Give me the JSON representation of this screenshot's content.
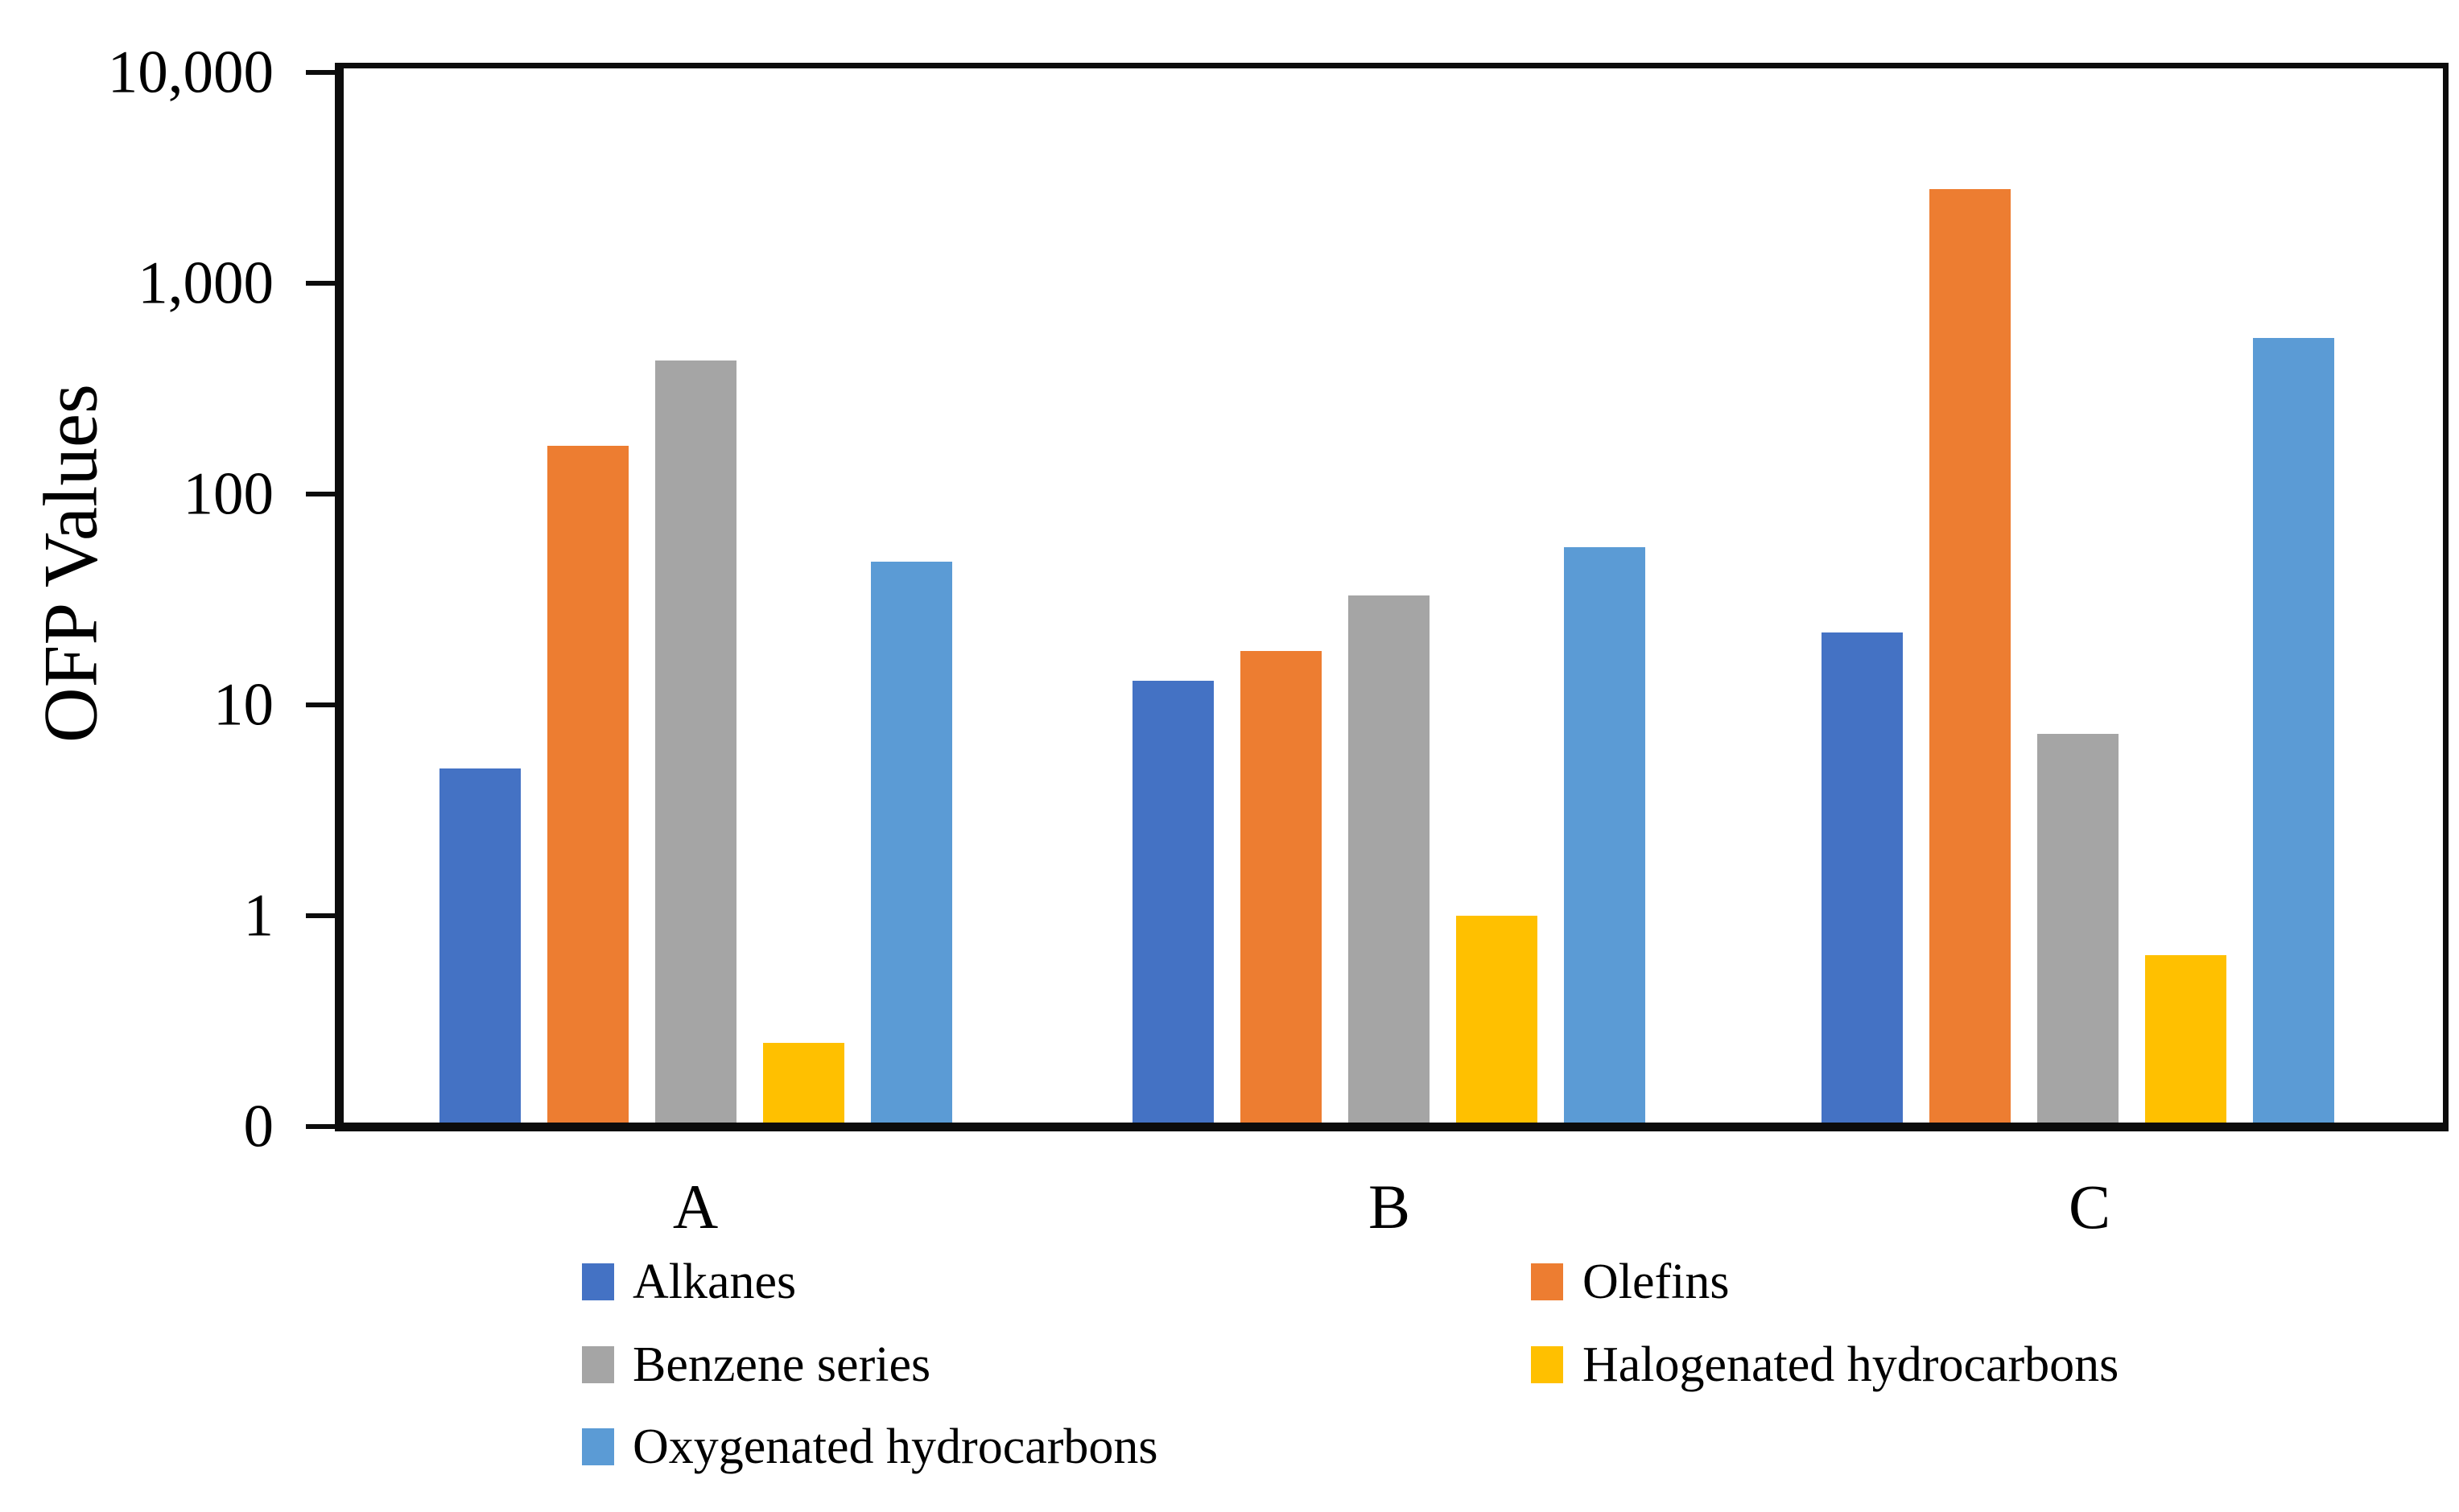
{
  "chart_data": {
    "type": "bar",
    "title": "",
    "xlabel": "",
    "ylabel": "OFP Values",
    "categories": [
      "A",
      "B",
      "C"
    ],
    "series": [
      {
        "name": "Alkanes",
        "color": "#4472C4",
        "values": [
          5,
          13,
          22
        ]
      },
      {
        "name": "Olefins",
        "color": "#ED7D31",
        "values": [
          170,
          18,
          2800
        ]
      },
      {
        "name": "Benzene series",
        "color": "#A5A5A5",
        "values": [
          430,
          33,
          7.3
        ]
      },
      {
        "name": "Halogenated hydrocarbons",
        "color": "#FFC000",
        "values": [
          0.25,
          1,
          0.65
        ]
      },
      {
        "name": "Oxygenated hydrocarbons",
        "color": "#5B9BD5",
        "values": [
          48,
          56,
          550
        ]
      }
    ],
    "y_axis": {
      "scale": "log",
      "tick_labels": [
        "10,000",
        "1,000",
        "100",
        "10",
        "1",
        "0"
      ],
      "tick_values": [
        10000,
        1000,
        100,
        10,
        1,
        0
      ]
    },
    "grid": false,
    "legend_position": "bottom",
    "legend_columns": [
      [
        "Alkanes",
        "Benzene series",
        "Oxygenated hydrocarbons"
      ],
      [
        "Olefins",
        "Halogenated hydrocarbons"
      ]
    ]
  }
}
